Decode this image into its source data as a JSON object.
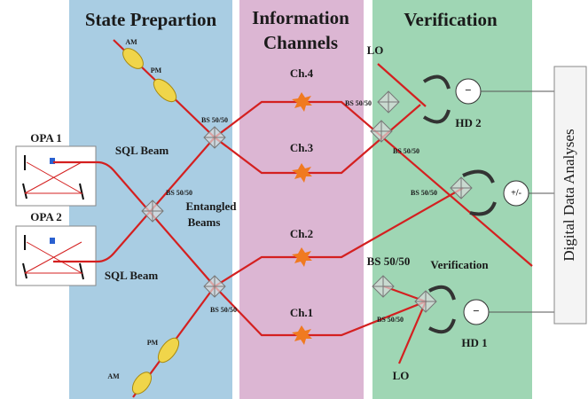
{
  "panels": {
    "state": "State Prepartion",
    "channels": [
      "Information",
      "Channels"
    ],
    "verification": "Verification"
  },
  "sources": {
    "opa1": "OPA 1",
    "opa2": "OPA 2",
    "sql_top": "SQL Beam",
    "sql_bottom": "SQL Beam",
    "entangled": [
      "Entangled",
      "Beams"
    ]
  },
  "modulators": {
    "am_top": "AM",
    "pm_top": "PM",
    "pm_bottom": "PM",
    "am_bottom": "AM"
  },
  "channels": [
    "Ch.4",
    "Ch.3",
    "Ch.2",
    "Ch.1"
  ],
  "beam_splitters": [
    "BS 50/50",
    "BS 50/50",
    "BS 50/50",
    "BS 50/50",
    "BS 50/50",
    "BS 50/50",
    "BS 50/50",
    "BS 50/50"
  ],
  "local_oscillators": [
    "LO",
    "LO"
  ],
  "detectors": {
    "hd2": "HD 2",
    "hd1": "HD 1",
    "minus_top": "−",
    "minus_bottom": "−",
    "plus_minus": "+/-",
    "verification_label": "Verification"
  },
  "output": "Digital Data Analyses"
}
